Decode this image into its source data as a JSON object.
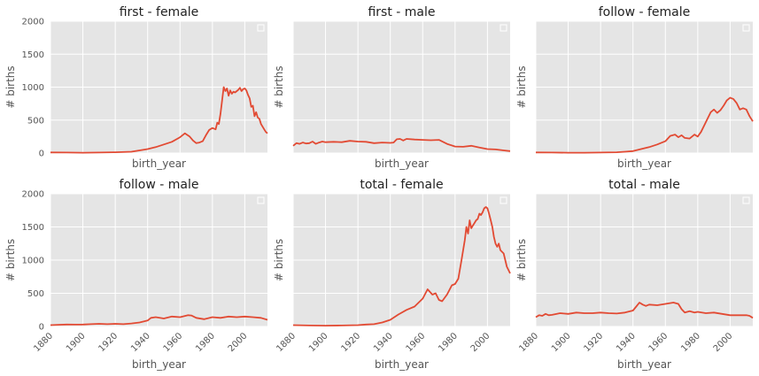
{
  "chart_data": [
    {
      "type": "line",
      "title": "first - female",
      "xlabel": "birth_year",
      "ylabel": "# births",
      "xlim": [
        1880,
        2014
      ],
      "ylim": [
        0,
        2000
      ],
      "grid": true,
      "legend": "top-right",
      "series": [
        {
          "x": [
            1880,
            1890,
            1900,
            1910,
            1920,
            1930,
            1935,
            1940,
            1945,
            1950,
            1955,
            1960,
            1963,
            1966,
            1968,
            1970,
            1972,
            1974,
            1976,
            1978,
            1980,
            1982,
            1983,
            1984,
            1985,
            1986,
            1987,
            1988,
            1989,
            1990,
            1991,
            1992,
            1993,
            1994,
            1995,
            1996,
            1997,
            1998,
            1999,
            2000,
            2001,
            2002,
            2003,
            2004,
            2005,
            2006,
            2007,
            2008,
            2009,
            2010,
            2011,
            2012,
            2013,
            2014
          ],
          "y": [
            10,
            8,
            6,
            8,
            12,
            20,
            40,
            60,
            90,
            130,
            170,
            240,
            300,
            250,
            190,
            150,
            160,
            180,
            270,
            350,
            380,
            360,
            460,
            440,
            600,
            800,
            1000,
            940,
            980,
            870,
            950,
            900,
            930,
            920,
            940,
            960,
            990,
            940,
            970,
            980,
            950,
            880,
            830,
            700,
            720,
            560,
            620,
            540,
            520,
            440,
            400,
            360,
            320,
            300
          ]
        }
      ]
    },
    {
      "type": "line",
      "title": "first - male",
      "xlabel": "birth_year",
      "ylabel": "# births",
      "xlim": [
        1880,
        2014
      ],
      "ylim": [
        0,
        2000
      ],
      "grid": true,
      "legend": "top-right",
      "series": [
        {
          "x": [
            1880,
            1882,
            1884,
            1886,
            1888,
            1890,
            1892,
            1894,
            1896,
            1898,
            1900,
            1905,
            1910,
            1915,
            1920,
            1925,
            1930,
            1935,
            1940,
            1942,
            1944,
            1946,
            1948,
            1950,
            1955,
            1960,
            1965,
            1970,
            1975,
            1980,
            1985,
            1990,
            1995,
            2000,
            2005,
            2010,
            2014
          ],
          "y": [
            110,
            150,
            140,
            160,
            145,
            150,
            175,
            140,
            160,
            175,
            165,
            170,
            165,
            185,
            175,
            170,
            150,
            160,
            155,
            160,
            210,
            215,
            190,
            215,
            205,
            200,
            195,
            200,
            140,
            100,
            95,
            110,
            85,
            60,
            55,
            40,
            30
          ]
        }
      ]
    },
    {
      "type": "line",
      "title": "follow - female",
      "xlabel": "birth_year",
      "ylabel": "# births",
      "xlim": [
        1880,
        2014
      ],
      "ylim": [
        0,
        2000
      ],
      "grid": true,
      "legend": "top-right",
      "series": [
        {
          "x": [
            1880,
            1890,
            1900,
            1910,
            1920,
            1930,
            1935,
            1940,
            1945,
            1950,
            1955,
            1960,
            1963,
            1966,
            1968,
            1970,
            1972,
            1975,
            1978,
            1980,
            1982,
            1985,
            1988,
            1990,
            1992,
            1994,
            1996,
            1998,
            2000,
            2002,
            2004,
            2006,
            2008,
            2010,
            2012,
            2014
          ],
          "y": [
            10,
            8,
            6,
            6,
            8,
            12,
            20,
            30,
            60,
            90,
            130,
            180,
            260,
            280,
            240,
            270,
            230,
            220,
            280,
            250,
            320,
            470,
            620,
            660,
            610,
            650,
            720,
            800,
            840,
            820,
            760,
            660,
            680,
            660,
            560,
            480
          ]
        }
      ]
    },
    {
      "type": "line",
      "title": "follow - male",
      "xlabel": "birth_year",
      "ylabel": "# births",
      "xlim": [
        1880,
        2014
      ],
      "ylim": [
        0,
        2000
      ],
      "grid": true,
      "legend": "top-right",
      "series": [
        {
          "x": [
            1880,
            1885,
            1890,
            1895,
            1900,
            1905,
            1910,
            1915,
            1920,
            1925,
            1930,
            1935,
            1940,
            1942,
            1945,
            1950,
            1955,
            1960,
            1965,
            1967,
            1970,
            1975,
            1980,
            1985,
            1990,
            1995,
            2000,
            2005,
            2010,
            2014
          ],
          "y": [
            20,
            25,
            30,
            28,
            30,
            35,
            40,
            35,
            40,
            35,
            45,
            60,
            90,
            130,
            140,
            120,
            150,
            140,
            170,
            165,
            130,
            110,
            140,
            130,
            150,
            140,
            150,
            140,
            130,
            100
          ]
        }
      ]
    },
    {
      "type": "line",
      "title": "total - female",
      "xlabel": "birth_year",
      "ylabel": "# births",
      "xlim": [
        1880,
        2014
      ],
      "ylim": [
        0,
        2000
      ],
      "grid": true,
      "legend": "top-right",
      "series": [
        {
          "x": [
            1880,
            1890,
            1900,
            1910,
            1920,
            1925,
            1930,
            1935,
            1940,
            1945,
            1950,
            1955,
            1960,
            1963,
            1966,
            1968,
            1970,
            1972,
            1975,
            1978,
            1980,
            1982,
            1984,
            1986,
            1987,
            1988,
            1989,
            1990,
            1991,
            1992,
            1993,
            1994,
            1995,
            1996,
            1997,
            1998,
            1999,
            2000,
            2001,
            2002,
            2003,
            2004,
            2005,
            2006,
            2007,
            2008,
            2010,
            2012,
            2014
          ],
          "y": [
            20,
            15,
            12,
            14,
            20,
            30,
            35,
            60,
            100,
            180,
            250,
            300,
            420,
            560,
            480,
            500,
            400,
            380,
            480,
            620,
            640,
            720,
            1000,
            1300,
            1500,
            1400,
            1600,
            1480,
            1520,
            1560,
            1600,
            1620,
            1700,
            1680,
            1720,
            1780,
            1800,
            1780,
            1700,
            1600,
            1500,
            1350,
            1250,
            1200,
            1250,
            1150,
            1100,
            900,
            800
          ]
        }
      ]
    },
    {
      "type": "line",
      "title": "total - male",
      "xlabel": "birth_year",
      "ylabel": "# births",
      "xlim": [
        1880,
        2014
      ],
      "ylim": [
        0,
        2000
      ],
      "grid": true,
      "legend": "top-right",
      "series": [
        {
          "x": [
            1880,
            1882,
            1884,
            1886,
            1888,
            1890,
            1895,
            1900,
            1905,
            1910,
            1915,
            1920,
            1925,
            1930,
            1935,
            1940,
            1942,
            1944,
            1946,
            1948,
            1950,
            1955,
            1960,
            1965,
            1968,
            1970,
            1972,
            1975,
            1978,
            1980,
            1985,
            1990,
            1995,
            2000,
            2005,
            2010,
            2012,
            2014
          ],
          "y": [
            140,
            170,
            160,
            190,
            170,
            175,
            200,
            190,
            210,
            200,
            200,
            210,
            200,
            195,
            210,
            240,
            300,
            360,
            330,
            310,
            330,
            320,
            340,
            360,
            340,
            260,
            210,
            230,
            210,
            220,
            200,
            210,
            190,
            170,
            170,
            170,
            160,
            130
          ]
        }
      ]
    }
  ]
}
